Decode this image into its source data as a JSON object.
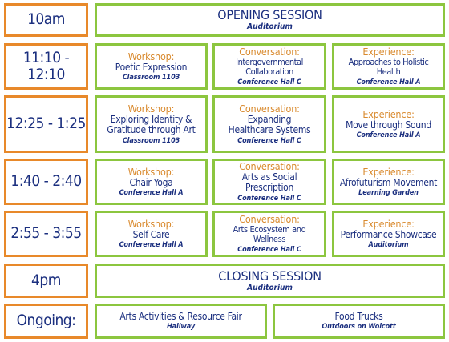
{
  "rows": [
    {
      "time": "10am",
      "full": {
        "title": "OPENING SESSION",
        "room": "Auditorium"
      }
    },
    {
      "time": "11:10 - 12:10",
      "sessions": [
        {
          "kind": "Workshop:",
          "title": "Poetic Expression",
          "room": "Classroom 1103"
        },
        {
          "kind": "Conversation:",
          "title": "Intergovernmental Collaboration",
          "room": "Conference Hall C"
        },
        {
          "kind": "Experience:",
          "title": "Approaches to Holistic Health",
          "room": "Conference Hall A"
        }
      ]
    },
    {
      "time": "12:25 - 1:25",
      "sessions": [
        {
          "kind": "Workshop:",
          "title": "Exploring Identity & Gratitude through Art",
          "room": "Classroom 1103"
        },
        {
          "kind": "Conversation:",
          "title": "Expanding Healthcare Systems",
          "room": "Conference Hall C"
        },
        {
          "kind": "Experience:",
          "title": "Move through Sound",
          "room": "Conference Hall A"
        }
      ]
    },
    {
      "time": "1:40 - 2:40",
      "sessions": [
        {
          "kind": "Workshop:",
          "title": "Chair Yoga",
          "room": "Conference Hall A"
        },
        {
          "kind": "Conversation:",
          "title": "Arts as Social Prescription",
          "room": "Conference Hall C"
        },
        {
          "kind": "Experience:",
          "title": "Afrofuturism Movement",
          "room": "Learning Garden"
        }
      ]
    },
    {
      "time": "2:55 - 3:55",
      "sessions": [
        {
          "kind": "Workshop:",
          "title": "Self-Care",
          "room": "Conference Hall A"
        },
        {
          "kind": "Conversation:",
          "title": "Arts Ecosystem and Wellness",
          "room": "Conference Hall C"
        },
        {
          "kind": "Experience:",
          "title": "Performance Showcase",
          "room": "Auditorium"
        }
      ]
    },
    {
      "time": "4pm",
      "full": {
        "title": "CLOSING SESSION",
        "room": "Auditorium"
      }
    },
    {
      "time": "Ongoing:",
      "ongoing": [
        {
          "title": "Arts Activities & Resource Fair",
          "room": "Hallway"
        },
        {
          "title": "Food Trucks",
          "room": "Outdoors on Wolcott"
        }
      ]
    }
  ]
}
